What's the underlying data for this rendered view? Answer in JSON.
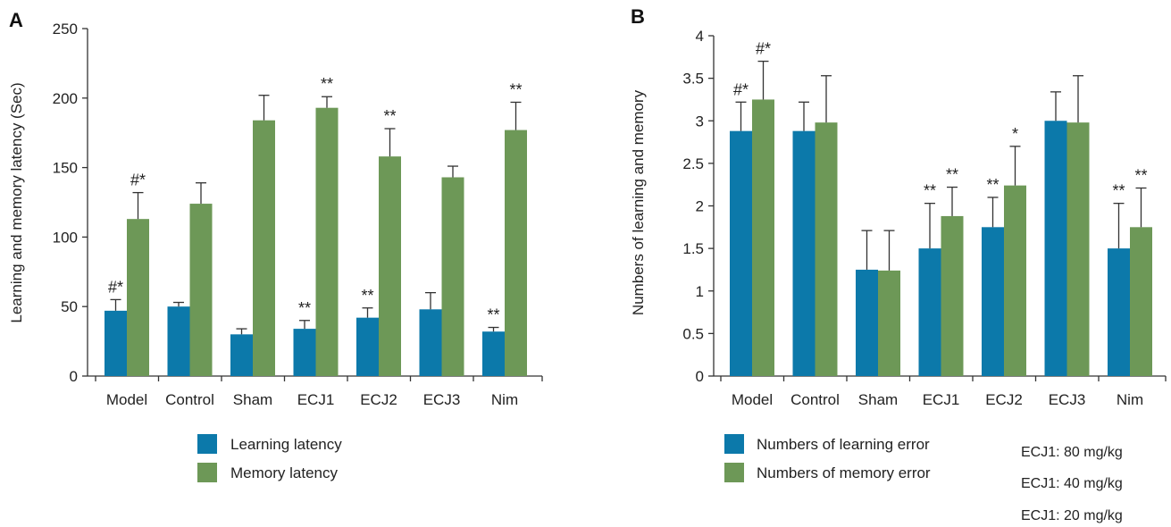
{
  "panels": {
    "a": {
      "letter": "A"
    },
    "b": {
      "letter": "B"
    }
  },
  "colors": {
    "series1": "#0c79aa",
    "series2": "#6d9857",
    "axis": "#333333",
    "text": "#222222"
  },
  "chart_data": [
    {
      "type": "bar",
      "panel": "A",
      "categories": [
        "Model",
        "Control",
        "Sham",
        "ECJ1",
        "ECJ2",
        "ECJ3",
        "Nim"
      ],
      "ylabel": "Learning and memory latency (Sec)",
      "xlabel": "",
      "ylim": [
        0,
        250
      ],
      "yticks": [
        "0",
        "50",
        "100",
        "150",
        "200",
        "250"
      ],
      "grid": false,
      "legend_placement": "bottom-center",
      "series": [
        {
          "name": "Learning latency",
          "values": [
            47,
            50,
            30,
            34,
            42,
            48,
            32
          ],
          "errors": [
            8,
            3,
            4,
            6,
            7,
            12,
            3
          ],
          "annotations": [
            "#*",
            "",
            "",
            "**",
            "**",
            "",
            "**"
          ]
        },
        {
          "name": "Memory latency",
          "values": [
            113,
            124,
            184,
            193,
            158,
            143,
            177
          ],
          "errors": [
            19,
            15,
            18,
            8,
            20,
            8,
            20
          ],
          "annotations": [
            "#*",
            "",
            "",
            "**",
            "**",
            "",
            "**"
          ]
        }
      ]
    },
    {
      "type": "bar",
      "panel": "B",
      "categories": [
        "Model",
        "Control",
        "Sham",
        "ECJ1",
        "ECJ2",
        "ECJ3",
        "Nim"
      ],
      "ylabel": "Numbers of learning and memory",
      "xlabel": "",
      "ylim": [
        0,
        4
      ],
      "yticks": [
        "0",
        "0.5",
        "1",
        "1.5",
        "2",
        "2.5",
        "3",
        "3.5",
        "4"
      ],
      "grid": false,
      "legend_placement": "bottom-left",
      "series": [
        {
          "name": "Numbers of learning error",
          "values": [
            2.88,
            2.88,
            1.25,
            1.5,
            1.75,
            3.0,
            1.5
          ],
          "errors": [
            0.34,
            0.34,
            0.46,
            0.53,
            0.35,
            0.34,
            0.53
          ],
          "annotations": [
            "#*",
            "",
            "",
            "**",
            "**",
            "",
            "**"
          ]
        },
        {
          "name": "Numbers of memory error",
          "values": [
            3.25,
            2.98,
            1.24,
            1.88,
            2.24,
            2.98,
            1.75
          ],
          "errors": [
            0.45,
            0.55,
            0.47,
            0.34,
            0.46,
            0.55,
            0.46
          ],
          "annotations": [
            "#*",
            "",
            "",
            "**",
            "*",
            "",
            "**"
          ]
        }
      ],
      "notes": [
        "ECJ1: 80 mg/kg",
        "ECJ1: 40 mg/kg",
        "ECJ1: 20 mg/kg"
      ]
    }
  ]
}
